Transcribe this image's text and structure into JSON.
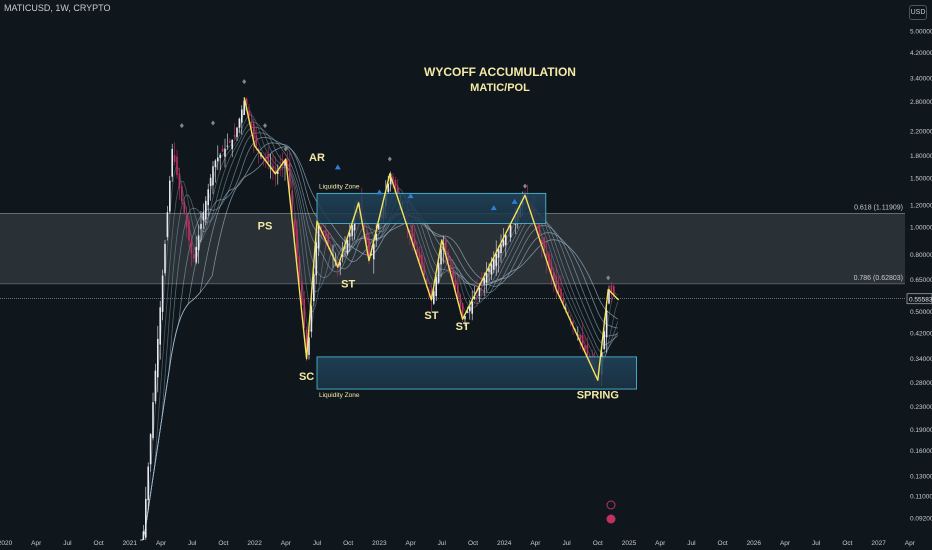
{
  "header": {
    "symbol_line": "MATICUSD, 1W, CRYPTO"
  },
  "currency_badge": "USD",
  "colors": {
    "background": "#0f171c",
    "candle_up": "#e8e8f0",
    "candle_down": "#c03060",
    "ribbon": "#9fb8cc",
    "wave": "#f2e35a",
    "zone_fill": "#1f3e55",
    "zone_border": "#4fc3e0",
    "fib_band": "#3a4147",
    "text": "#c8ccd0",
    "label": "#f4eaa6"
  },
  "chart_data": {
    "type": "line",
    "title": "WYCOFF ACCUMULATION",
    "subtitle": "MATIC/POL",
    "y_scale": "log",
    "ylim": [
      0.085,
      6.0
    ],
    "x_ticks": [
      "2020",
      "Apr",
      "Jul",
      "Oct",
      "2021",
      "Apr",
      "Jul",
      "Oct",
      "2022",
      "Apr",
      "Jul",
      "Oct",
      "2023",
      "Apr",
      "Jul",
      "Oct",
      "2024",
      "Apr",
      "Jul",
      "Oct",
      "2025",
      "Apr",
      "Jul",
      "Oct",
      "2026",
      "Apr",
      "Jul",
      "Oct",
      "2027",
      "Apr"
    ],
    "y_ticks": [
      "5.00000",
      "4.20000",
      "3.40000",
      "2.80000",
      "2.20000",
      "1.80000",
      "1.50000",
      "1.20000",
      "1.00000",
      "0.80000",
      "0.65000",
      "0.50000",
      "0.42000",
      "0.34000",
      "0.28000",
      "0.23000",
      "0.19000",
      "0.16000",
      "0.13000",
      "0.11000",
      "0.09200"
    ],
    "y_tick_values": [
      5.0,
      4.2,
      3.4,
      2.8,
      2.2,
      1.8,
      1.5,
      1.2,
      1.0,
      0.8,
      0.65,
      0.5,
      0.42,
      0.34,
      0.28,
      0.23,
      0.19,
      0.16,
      0.13,
      0.11,
      0.092
    ],
    "last_price": {
      "label": "0.55583",
      "value": 0.55583
    },
    "fib_levels": [
      {
        "label": "0.618 (1.11909)",
        "value": 1.11909
      },
      {
        "label": "0.786 (0.62803)",
        "value": 0.62803
      }
    ],
    "liquidity_zones": [
      {
        "label": "Liquidity Zone",
        "low": 1.03,
        "high": 1.32,
        "from": "2022-07",
        "to": "2024-05"
      },
      {
        "label": "Liquidity Zone",
        "low": 0.265,
        "high": 0.345,
        "from": "2022-07",
        "to": "2024-12"
      }
    ],
    "wyckoff_labels": [
      {
        "text": "AR",
        "date": "2022-07",
        "price": 1.72
      },
      {
        "text": "PS",
        "date": "2022-02",
        "price": 0.98
      },
      {
        "text": "ST",
        "date": "2022-10",
        "price": 0.61
      },
      {
        "text": "ST",
        "date": "2023-06",
        "price": 0.47
      },
      {
        "text": "ST",
        "date": "2023-09",
        "price": 0.43
      },
      {
        "text": "SC",
        "date": "2022-06",
        "price": 0.285
      },
      {
        "text": "SPRING",
        "date": "2024-10",
        "price": 0.245
      }
    ],
    "wave_path": [
      {
        "date": "2021-12",
        "value": 2.9
      },
      {
        "date": "2022-01",
        "value": 1.95
      },
      {
        "date": "2022-03",
        "value": 1.55
      },
      {
        "date": "2022-04",
        "value": 1.75
      },
      {
        "date": "2022-06",
        "value": 0.34
      },
      {
        "date": "2022-07",
        "value": 1.05
      },
      {
        "date": "2022-09",
        "value": 0.72
      },
      {
        "date": "2022-11",
        "value": 1.22
      },
      {
        "date": "2022-12",
        "value": 0.76
      },
      {
        "date": "2023-02",
        "value": 1.55
      },
      {
        "date": "2023-06",
        "value": 0.55
      },
      {
        "date": "2023-07",
        "value": 0.9
      },
      {
        "date": "2023-09",
        "value": 0.47
      },
      {
        "date": "2024-03",
        "value": 1.3
      },
      {
        "date": "2024-06",
        "value": 0.6
      },
      {
        "date": "2024-10",
        "value": 0.285
      },
      {
        "date": "2024-11",
        "value": 0.6
      },
      {
        "date": "2024-12",
        "value": 0.55
      }
    ]
  }
}
